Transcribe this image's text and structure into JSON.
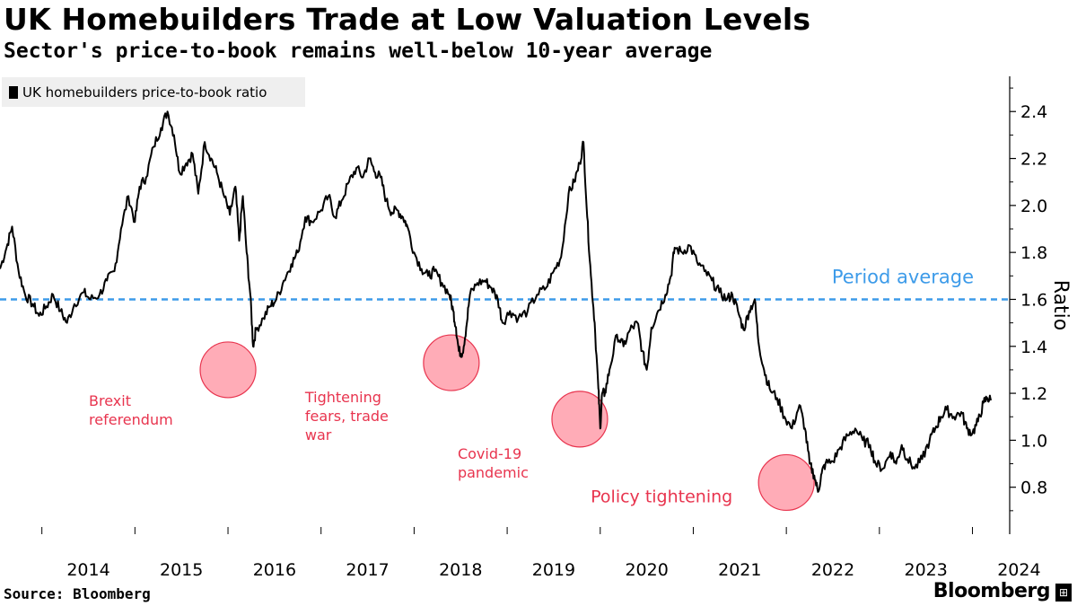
{
  "title": "UK Homebuilders Trade at Low Valuation Levels",
  "subtitle": "Sector's price-to-book remains well-below 10-year average",
  "source": "Source: Bloomberg",
  "brand": "Bloomberg",
  "brand_mark": "⊞",
  "chart_data": {
    "type": "line",
    "title": "UK Homebuilders Trade at Low Valuation Levels",
    "subtitle": "Sector's price-to-book remains well-below 10-year average",
    "xlabel": "",
    "ylabel": "Ratio",
    "xlim": [
      2013.55,
      2024.4
    ],
    "ylim": [
      0.6,
      2.55
    ],
    "x_ticks": [
      "2014",
      "2015",
      "2016",
      "2017",
      "2018",
      "2019",
      "2020",
      "2021",
      "2022",
      "2023",
      "2024"
    ],
    "y_ticks": [
      "0.8",
      "1.0",
      "1.2",
      "1.4",
      "1.6",
      "1.8",
      "2.0",
      "2.2",
      "2.4"
    ],
    "legend": {
      "label": "UK homebuilders price-to-book ratio",
      "placement": "top-left",
      "color": "#000000"
    },
    "reference_line": {
      "label": "Period average",
      "value": 1.6,
      "color": "#3d9be9"
    },
    "series": [
      {
        "name": "UK homebuilders price-to-book ratio",
        "color": "#000000",
        "points": [
          [
            2013.55,
            1.73
          ],
          [
            2013.62,
            1.82
          ],
          [
            2013.68,
            1.91
          ],
          [
            2013.75,
            1.72
          ],
          [
            2013.82,
            1.62
          ],
          [
            2013.9,
            1.58
          ],
          [
            2013.97,
            1.53
          ],
          [
            2014.05,
            1.57
          ],
          [
            2014.12,
            1.62
          ],
          [
            2014.2,
            1.55
          ],
          [
            2014.27,
            1.5
          ],
          [
            2014.35,
            1.58
          ],
          [
            2014.45,
            1.63
          ],
          [
            2014.52,
            1.6
          ],
          [
            2014.62,
            1.62
          ],
          [
            2014.7,
            1.68
          ],
          [
            2014.78,
            1.72
          ],
          [
            2014.85,
            1.9
          ],
          [
            2014.93,
            2.04
          ],
          [
            2015.0,
            1.93
          ],
          [
            2015.05,
            2.08
          ],
          [
            2015.12,
            2.12
          ],
          [
            2015.2,
            2.25
          ],
          [
            2015.28,
            2.33
          ],
          [
            2015.35,
            2.4
          ],
          [
            2015.42,
            2.3
          ],
          [
            2015.48,
            2.14
          ],
          [
            2015.55,
            2.18
          ],
          [
            2015.62,
            2.22
          ],
          [
            2015.68,
            2.05
          ],
          [
            2015.75,
            2.27
          ],
          [
            2015.82,
            2.2
          ],
          [
            2015.88,
            2.14
          ],
          [
            2015.95,
            2.05
          ],
          [
            2016.02,
            1.96
          ],
          [
            2016.08,
            2.08
          ],
          [
            2016.12,
            1.85
          ],
          [
            2016.16,
            2.04
          ],
          [
            2016.2,
            1.8
          ],
          [
            2016.24,
            1.62
          ],
          [
            2016.27,
            1.4
          ],
          [
            2016.3,
            1.47
          ],
          [
            2016.38,
            1.52
          ],
          [
            2016.45,
            1.57
          ],
          [
            2016.52,
            1.6
          ],
          [
            2016.6,
            1.68
          ],
          [
            2016.68,
            1.75
          ],
          [
            2016.75,
            1.8
          ],
          [
            2016.83,
            1.95
          ],
          [
            2016.9,
            1.93
          ],
          [
            2017.0,
            1.98
          ],
          [
            2017.08,
            2.04
          ],
          [
            2017.15,
            1.95
          ],
          [
            2017.22,
            2.02
          ],
          [
            2017.3,
            2.1
          ],
          [
            2017.38,
            2.16
          ],
          [
            2017.45,
            2.12
          ],
          [
            2017.52,
            2.2
          ],
          [
            2017.58,
            2.14
          ],
          [
            2017.64,
            2.12
          ],
          [
            2017.7,
            2.02
          ],
          [
            2017.76,
            1.97
          ],
          [
            2017.82,
            1.98
          ],
          [
            2017.88,
            1.95
          ],
          [
            2017.92,
            1.92
          ],
          [
            2018.0,
            1.8
          ],
          [
            2018.08,
            1.73
          ],
          [
            2018.15,
            1.7
          ],
          [
            2018.22,
            1.72
          ],
          [
            2018.3,
            1.67
          ],
          [
            2018.38,
            1.62
          ],
          [
            2018.42,
            1.55
          ],
          [
            2018.45,
            1.48
          ],
          [
            2018.48,
            1.38
          ],
          [
            2018.52,
            1.37
          ],
          [
            2018.56,
            1.48
          ],
          [
            2018.6,
            1.62
          ],
          [
            2018.68,
            1.67
          ],
          [
            2018.76,
            1.68
          ],
          [
            2018.83,
            1.65
          ],
          [
            2018.9,
            1.6
          ],
          [
            2018.95,
            1.5
          ],
          [
            2019.03,
            1.55
          ],
          [
            2019.12,
            1.52
          ],
          [
            2019.22,
            1.55
          ],
          [
            2019.32,
            1.62
          ],
          [
            2019.42,
            1.65
          ],
          [
            2019.5,
            1.72
          ],
          [
            2019.58,
            1.78
          ],
          [
            2019.66,
            2.05
          ],
          [
            2019.72,
            2.1
          ],
          [
            2019.78,
            2.18
          ],
          [
            2019.82,
            2.27
          ],
          [
            2019.86,
            1.95
          ],
          [
            2019.9,
            1.7
          ],
          [
            2019.94,
            1.5
          ],
          [
            2019.98,
            1.22
          ],
          [
            2020.0,
            1.05
          ],
          [
            2020.02,
            1.2
          ],
          [
            2020.05,
            1.2
          ],
          [
            2020.1,
            1.3
          ],
          [
            2020.18,
            1.45
          ],
          [
            2020.25,
            1.4
          ],
          [
            2020.32,
            1.47
          ],
          [
            2020.4,
            1.5
          ],
          [
            2020.45,
            1.38
          ],
          [
            2020.5,
            1.3
          ],
          [
            2020.55,
            1.48
          ],
          [
            2020.62,
            1.55
          ],
          [
            2020.7,
            1.62
          ],
          [
            2020.76,
            1.7
          ],
          [
            2020.8,
            1.82
          ],
          [
            2020.88,
            1.8
          ],
          [
            2020.96,
            1.83
          ],
          [
            2021.04,
            1.76
          ],
          [
            2021.12,
            1.72
          ],
          [
            2021.2,
            1.68
          ],
          [
            2021.28,
            1.63
          ],
          [
            2021.36,
            1.6
          ],
          [
            2021.42,
            1.62
          ],
          [
            2021.48,
            1.55
          ],
          [
            2021.54,
            1.47
          ],
          [
            2021.6,
            1.55
          ],
          [
            2021.66,
            1.6
          ],
          [
            2021.7,
            1.42
          ],
          [
            2021.76,
            1.3
          ],
          [
            2021.82,
            1.22
          ],
          [
            2021.9,
            1.18
          ],
          [
            2021.98,
            1.1
          ],
          [
            2022.06,
            1.05
          ],
          [
            2022.14,
            1.15
          ],
          [
            2022.2,
            1.05
          ],
          [
            2022.25,
            0.9
          ],
          [
            2022.3,
            0.85
          ],
          [
            2022.34,
            0.78
          ],
          [
            2022.38,
            0.86
          ],
          [
            2022.42,
            0.9
          ],
          [
            2022.5,
            0.91
          ],
          [
            2022.58,
            0.97
          ],
          [
            2022.66,
            1.02
          ],
          [
            2022.74,
            1.05
          ],
          [
            2022.82,
            1.0
          ],
          [
            2022.9,
            0.98
          ],
          [
            2022.96,
            0.9
          ],
          [
            2023.04,
            0.88
          ],
          [
            2023.12,
            0.95
          ],
          [
            2023.18,
            0.9
          ],
          [
            2023.24,
            0.98
          ],
          [
            2023.3,
            0.92
          ],
          [
            2023.38,
            0.88
          ],
          [
            2023.46,
            0.92
          ],
          [
            2023.54,
            1.0
          ],
          [
            2023.6,
            1.05
          ],
          [
            2023.66,
            1.1
          ],
          [
            2023.72,
            1.13
          ],
          [
            2023.8,
            1.1
          ],
          [
            2023.88,
            1.12
          ],
          [
            2023.94,
            1.05
          ],
          [
            2024.0,
            1.03
          ],
          [
            2024.06,
            1.08
          ],
          [
            2024.12,
            1.16
          ],
          [
            2024.16,
            1.18
          ],
          [
            2024.2,
            1.17
          ]
        ]
      }
    ],
    "annotations": [
      {
        "label": "Brexit referendum",
        "lines": [
          "Brexit",
          "referendum"
        ],
        "x": 2016.0,
        "y": 1.3,
        "circle_center": [
          2016.0,
          1.3
        ]
      },
      {
        "label": "Tightening fears, trade war",
        "lines": [
          "Tightening",
          "fears, trade",
          "war"
        ],
        "x": 2018.4,
        "y": 1.33,
        "circle_center": [
          2018.4,
          1.33
        ]
      },
      {
        "label": "Covid-19 pandemic",
        "lines": [
          "Covid-19",
          "pandemic"
        ],
        "x": 2019.78,
        "y": 1.09,
        "circle_center": [
          2019.78,
          1.09
        ]
      },
      {
        "label": "Policy tightening",
        "lines": [
          "Policy tightening"
        ],
        "x": 2022.0,
        "y": 0.82,
        "circle_center": [
          2022.0,
          0.82
        ]
      }
    ],
    "annotation_color": "#e8344e",
    "circle_fill": "#ff9eaa",
    "circle_stroke": "#e8344e",
    "grid": false
  }
}
